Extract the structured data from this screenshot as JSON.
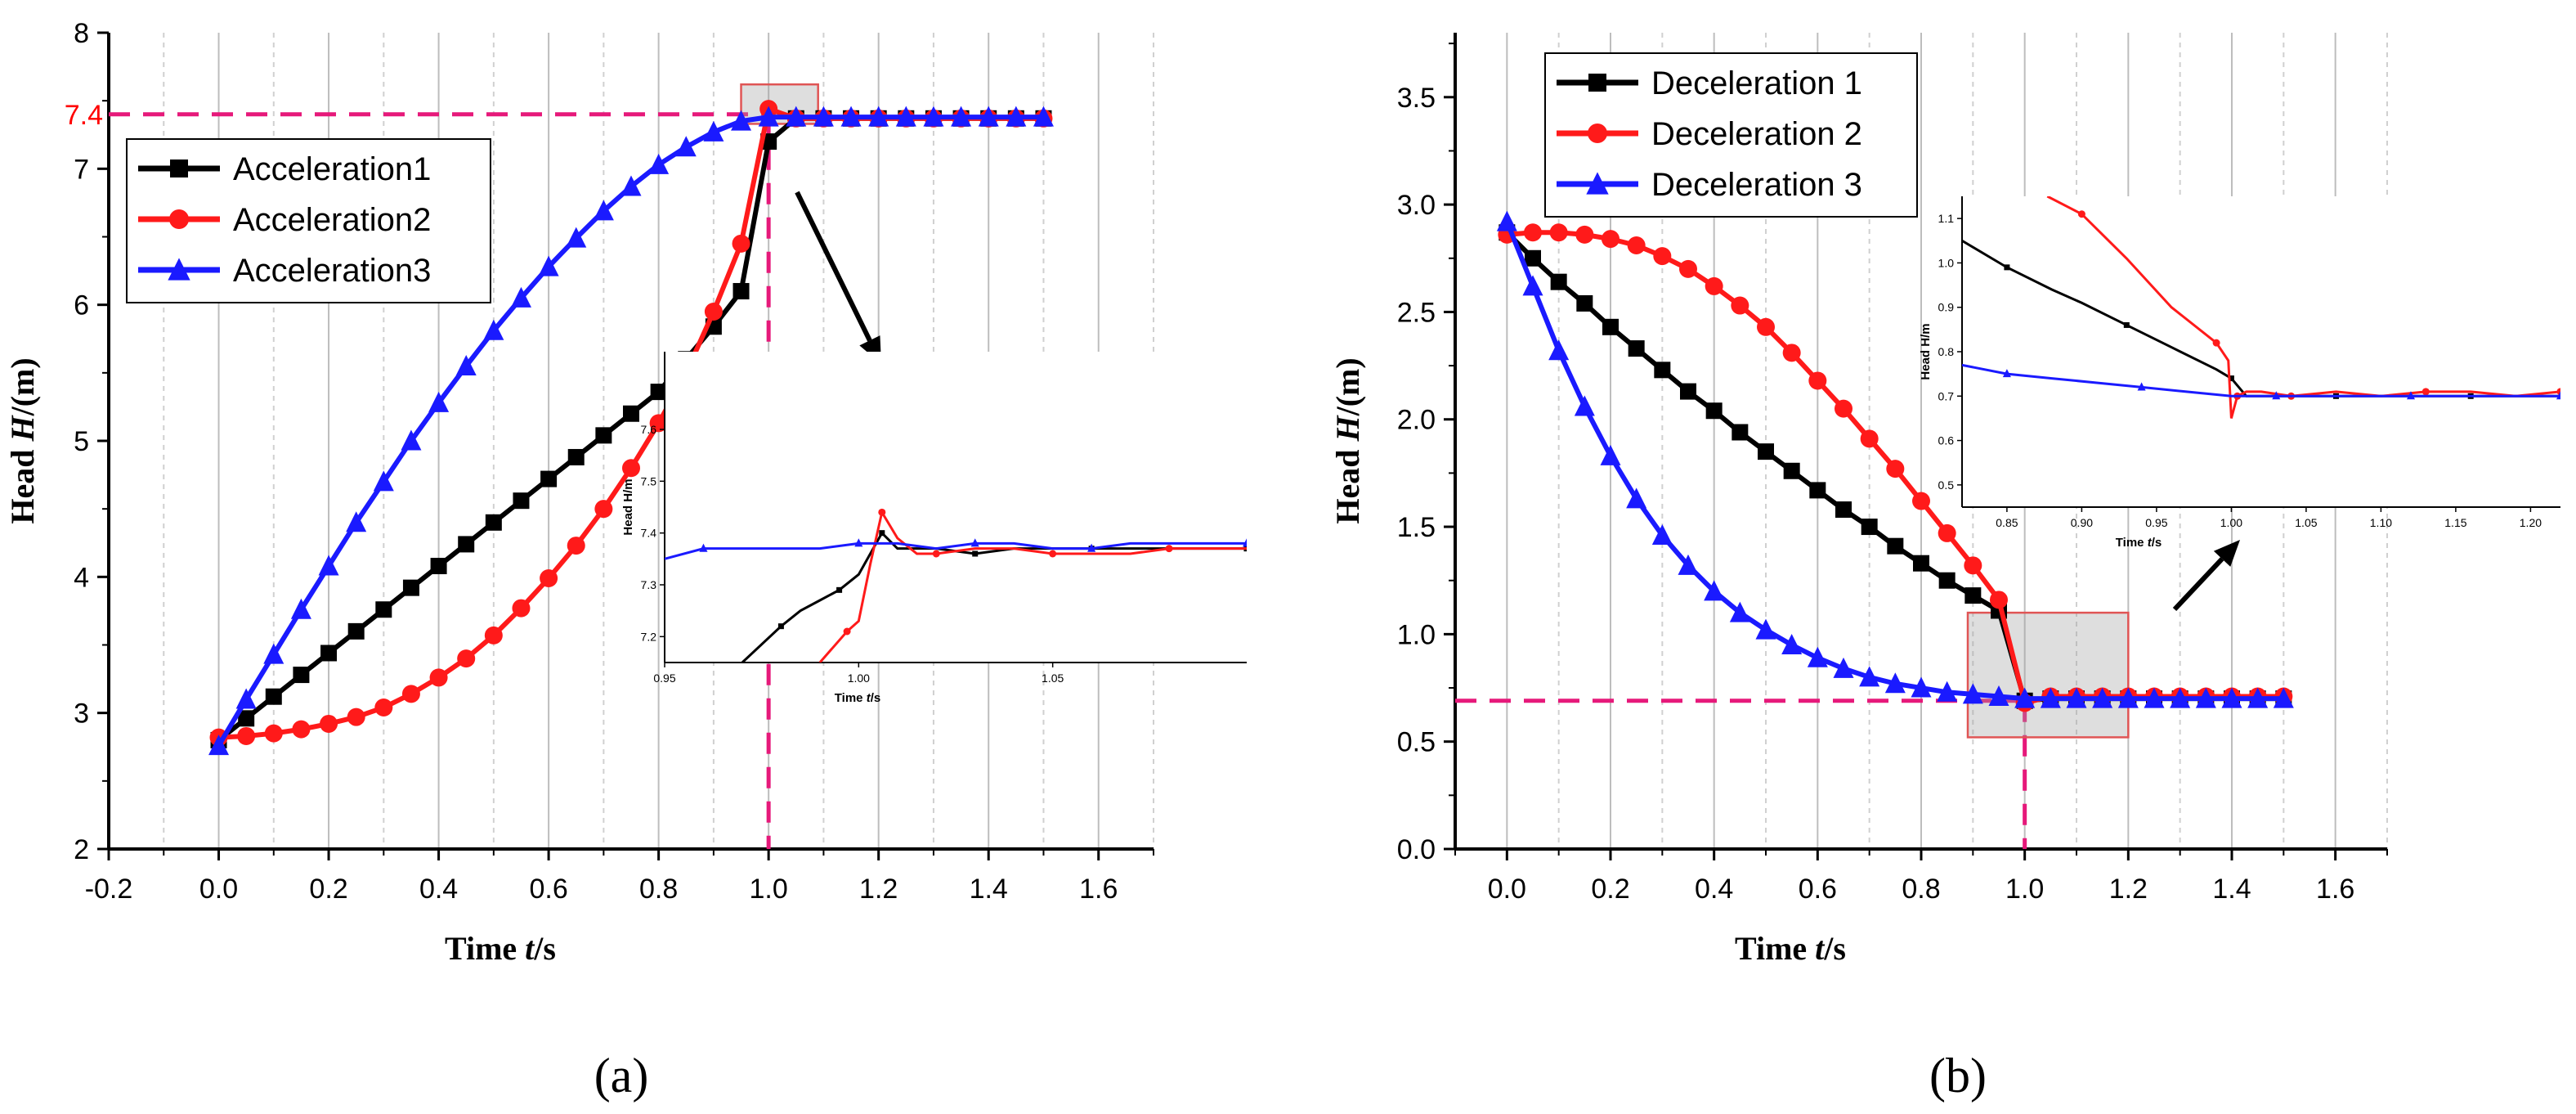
{
  "colors": {
    "series1": "#000000",
    "series2": "#ff1a1a",
    "series3": "#1a1aff",
    "ref_line": "#e6197a",
    "zoom_box": "#e05555"
  },
  "panel_labels": [
    "(a)",
    "(b)"
  ],
  "chart_data": [
    {
      "type": "line",
      "panel": "(a)",
      "xlabel_prefix": "Time ",
      "xlabel_var": "t",
      "xlabel_suffix": "/s",
      "ylabel_prefix": "Head ",
      "ylabel_var": "H",
      "ylabel_suffix": "/(m)",
      "xlim": [
        -0.2,
        1.7
      ],
      "ylim": [
        2,
        8
      ],
      "xticks": [
        -0.2,
        0.0,
        0.2,
        0.4,
        0.6,
        0.8,
        1.0,
        1.2,
        1.4,
        1.6
      ],
      "xtick_labels": [
        "-0.2",
        "0.0",
        "0.2",
        "0.4",
        "0.6",
        "0.8",
        "1.0",
        "1.2",
        "1.4",
        "1.6"
      ],
      "yticks": [
        2,
        3,
        4,
        5,
        6,
        7,
        8
      ],
      "ytick_labels": [
        "2",
        "3",
        "4",
        "5",
        "6",
        "7",
        "8"
      ],
      "grid": "vertical",
      "legend_position": "top-left",
      "reference": {
        "x": 1.0,
        "y": 7.4,
        "y_label": "7.4"
      },
      "zoom_box": {
        "x": [
          0.95,
          1.09
        ],
        "y": [
          7.33,
          7.62
        ]
      },
      "series": [
        {
          "name": "Acceleration1",
          "marker": "square",
          "x": [
            0.0,
            0.05,
            0.1,
            0.15,
            0.2,
            0.25,
            0.3,
            0.35,
            0.4,
            0.45,
            0.5,
            0.55,
            0.6,
            0.65,
            0.7,
            0.75,
            0.8,
            0.85,
            0.9,
            0.95,
            1.0,
            1.05,
            1.1,
            1.15,
            1.2,
            1.25,
            1.3,
            1.35,
            1.4,
            1.45,
            1.5
          ],
          "y": [
            2.8,
            2.96,
            3.12,
            3.28,
            3.44,
            3.6,
            3.76,
            3.92,
            4.08,
            4.24,
            4.4,
            4.56,
            4.72,
            4.88,
            5.04,
            5.2,
            5.36,
            5.6,
            5.84,
            6.1,
            7.2,
            7.37,
            7.37,
            7.37,
            7.37,
            7.37,
            7.37,
            7.37,
            7.37,
            7.37,
            7.37
          ]
        },
        {
          "name": "Acceleration2",
          "marker": "circle",
          "x": [
            0.0,
            0.05,
            0.1,
            0.15,
            0.2,
            0.25,
            0.3,
            0.35,
            0.4,
            0.45,
            0.5,
            0.55,
            0.6,
            0.65,
            0.7,
            0.75,
            0.8,
            0.85,
            0.9,
            0.95,
            1.0,
            1.05,
            1.1,
            1.15,
            1.2,
            1.25,
            1.3,
            1.35,
            1.4,
            1.45,
            1.5
          ],
          "y": [
            2.82,
            2.83,
            2.85,
            2.88,
            2.92,
            2.97,
            3.04,
            3.14,
            3.26,
            3.4,
            3.57,
            3.77,
            3.99,
            4.23,
            4.5,
            4.8,
            5.13,
            5.5,
            5.95,
            6.45,
            7.44,
            7.37,
            7.37,
            7.37,
            7.37,
            7.37,
            7.37,
            7.37,
            7.37,
            7.37,
            7.37
          ]
        },
        {
          "name": "Acceleration3",
          "marker": "triangle",
          "x": [
            0.0,
            0.05,
            0.1,
            0.15,
            0.2,
            0.25,
            0.3,
            0.35,
            0.4,
            0.45,
            0.5,
            0.55,
            0.6,
            0.65,
            0.7,
            0.75,
            0.8,
            0.85,
            0.9,
            0.95,
            1.0,
            1.05,
            1.1,
            1.15,
            1.2,
            1.25,
            1.3,
            1.35,
            1.4,
            1.45,
            1.5
          ],
          "y": [
            2.76,
            3.1,
            3.43,
            3.76,
            4.08,
            4.4,
            4.7,
            5.0,
            5.28,
            5.55,
            5.81,
            6.05,
            6.28,
            6.49,
            6.69,
            6.87,
            7.03,
            7.16,
            7.27,
            7.35,
            7.38,
            7.38,
            7.38,
            7.38,
            7.38,
            7.38,
            7.38,
            7.38,
            7.38,
            7.38,
            7.38
          ]
        }
      ],
      "inset": {
        "xlabel_prefix": "Time ",
        "xlabel_var": "t",
        "xlabel_suffix": "/s",
        "ylabel": "Head H/m",
        "xlim": [
          0.95,
          1.1
        ],
        "ylim": [
          7.15,
          7.75
        ],
        "xticks": [
          0.95,
          1.0,
          1.05
        ],
        "xtick_labels": [
          "0.95",
          "1.00",
          "1.05"
        ],
        "yticks": [
          7.2,
          7.3,
          7.4,
          7.5,
          7.6
        ],
        "ytick_labels": [
          "7.2",
          "7.3",
          "7.4",
          "7.5",
          "7.6"
        ],
        "series": [
          {
            "x": [
              0.97,
              0.98,
              0.985,
              0.99,
              0.995,
              1.0,
              1.003,
              1.006,
              1.01,
              1.02,
              1.03,
              1.04,
              1.05,
              1.06,
              1.07,
              1.08,
              1.1
            ],
            "y": [
              7.15,
              7.22,
              7.25,
              7.27,
              7.29,
              7.32,
              7.36,
              7.4,
              7.37,
              7.37,
              7.36,
              7.37,
              7.37,
              7.37,
              7.37,
              7.37,
              7.37
            ]
          },
          {
            "x": [
              0.99,
              0.997,
              1.0,
              1.003,
              1.006,
              1.01,
              1.015,
              1.02,
              1.03,
              1.04,
              1.05,
              1.06,
              1.07,
              1.08,
              1.1
            ],
            "y": [
              7.15,
              7.21,
              7.23,
              7.34,
              7.44,
              7.39,
              7.36,
              7.36,
              7.37,
              7.37,
              7.36,
              7.36,
              7.36,
              7.37,
              7.37
            ]
          },
          {
            "x": [
              0.95,
              0.96,
              0.98,
              0.99,
              1.0,
              1.01,
              1.02,
              1.03,
              1.04,
              1.05,
              1.06,
              1.07,
              1.08,
              1.1
            ],
            "y": [
              7.35,
              7.37,
              7.37,
              7.37,
              7.38,
              7.38,
              7.37,
              7.38,
              7.38,
              7.37,
              7.37,
              7.38,
              7.38,
              7.38
            ]
          }
        ]
      }
    },
    {
      "type": "line",
      "panel": "(b)",
      "xlabel_prefix": "Time ",
      "xlabel_var": "t",
      "xlabel_suffix": "/s",
      "ylabel_prefix": "Head ",
      "ylabel_var": "H",
      "ylabel_suffix": "/(m)",
      "xlim": [
        -0.1,
        1.7
      ],
      "ylim": [
        0.0,
        3.8
      ],
      "xticks": [
        0.0,
        0.2,
        0.4,
        0.6,
        0.8,
        1.0,
        1.2,
        1.4,
        1.6
      ],
      "xtick_labels": [
        "0.0",
        "0.2",
        "0.4",
        "0.6",
        "0.8",
        "1.0",
        "1.2",
        "1.4",
        "1.6"
      ],
      "yticks": [
        0.0,
        0.5,
        1.0,
        1.5,
        2.0,
        2.5,
        3.0,
        3.5
      ],
      "ytick_labels": [
        "0.0",
        "0.5",
        "1.0",
        "1.5",
        "2.0",
        "2.5",
        "3.0",
        "3.5"
      ],
      "grid": "vertical",
      "legend_position": "top-left",
      "reference": {
        "x": 1.0,
        "y": 0.69
      },
      "zoom_box": {
        "x": [
          0.89,
          1.2
        ],
        "y": [
          0.52,
          1.1
        ]
      },
      "series": [
        {
          "name": "Deceleration 1",
          "marker": "square",
          "x": [
            0.0,
            0.05,
            0.1,
            0.15,
            0.2,
            0.25,
            0.3,
            0.35,
            0.4,
            0.45,
            0.5,
            0.55,
            0.6,
            0.65,
            0.7,
            0.75,
            0.8,
            0.85,
            0.9,
            0.95,
            1.0,
            1.05,
            1.1,
            1.15,
            1.2,
            1.25,
            1.3,
            1.35,
            1.4,
            1.45,
            1.5
          ],
          "y": [
            2.87,
            2.75,
            2.64,
            2.54,
            2.43,
            2.33,
            2.23,
            2.13,
            2.04,
            1.94,
            1.85,
            1.76,
            1.67,
            1.58,
            1.5,
            1.41,
            1.33,
            1.25,
            1.18,
            1.11,
            0.69,
            0.7,
            0.7,
            0.7,
            0.7,
            0.7,
            0.7,
            0.7,
            0.7,
            0.7,
            0.7
          ]
        },
        {
          "name": "Deceleration 2",
          "marker": "circle",
          "x": [
            0.0,
            0.05,
            0.1,
            0.15,
            0.2,
            0.25,
            0.3,
            0.35,
            0.4,
            0.45,
            0.5,
            0.55,
            0.6,
            0.65,
            0.7,
            0.75,
            0.8,
            0.85,
            0.9,
            0.95,
            1.0,
            1.05,
            1.1,
            1.15,
            1.2,
            1.25,
            1.3,
            1.35,
            1.4,
            1.45,
            1.5
          ],
          "y": [
            2.86,
            2.87,
            2.87,
            2.86,
            2.84,
            2.81,
            2.76,
            2.7,
            2.62,
            2.53,
            2.43,
            2.31,
            2.18,
            2.05,
            1.91,
            1.77,
            1.62,
            1.47,
            1.32,
            1.16,
            0.68,
            0.71,
            0.71,
            0.71,
            0.71,
            0.71,
            0.71,
            0.71,
            0.71,
            0.71,
            0.71
          ]
        },
        {
          "name": "Deceleration 3",
          "marker": "triangle",
          "x": [
            0.0,
            0.05,
            0.1,
            0.15,
            0.2,
            0.25,
            0.3,
            0.35,
            0.4,
            0.45,
            0.5,
            0.55,
            0.6,
            0.65,
            0.7,
            0.75,
            0.8,
            0.85,
            0.9,
            0.95,
            1.0,
            1.05,
            1.1,
            1.15,
            1.2,
            1.25,
            1.3,
            1.35,
            1.4,
            1.45,
            1.5
          ],
          "y": [
            2.92,
            2.62,
            2.32,
            2.06,
            1.83,
            1.63,
            1.46,
            1.32,
            1.2,
            1.1,
            1.02,
            0.95,
            0.89,
            0.84,
            0.8,
            0.77,
            0.75,
            0.73,
            0.72,
            0.71,
            0.7,
            0.7,
            0.7,
            0.7,
            0.7,
            0.7,
            0.7,
            0.7,
            0.7,
            0.7,
            0.7
          ]
        }
      ],
      "inset": {
        "xlabel_prefix": "Time ",
        "xlabel_var": "t",
        "xlabel_suffix": "/s",
        "ylabel": "Head H/m",
        "xlim": [
          0.82,
          1.22
        ],
        "ylim": [
          0.45,
          1.15
        ],
        "xticks": [
          0.85,
          0.9,
          0.95,
          1.0,
          1.05,
          1.1,
          1.15,
          1.2
        ],
        "xtick_labels": [
          "0.85",
          "0.90",
          "0.95",
          "1.00",
          "1.05",
          "1.10",
          "1.15",
          "1.20"
        ],
        "yticks": [
          0.5,
          0.6,
          0.7,
          0.8,
          0.9,
          1.0,
          1.1
        ],
        "ytick_labels": [
          "0.5",
          "0.6",
          "0.7",
          "0.8",
          "0.9",
          "1.0",
          "1.1"
        ],
        "series": [
          {
            "x": [
              0.82,
              0.85,
              0.88,
              0.9,
              0.93,
              0.96,
              0.99,
              1.0,
              1.01,
              1.04,
              1.07,
              1.1,
              1.13,
              1.16,
              1.19,
              1.22
            ],
            "y": [
              1.05,
              0.99,
              0.94,
              0.91,
              0.86,
              0.81,
              0.76,
              0.74,
              0.7,
              0.7,
              0.7,
              0.7,
              0.7,
              0.7,
              0.7,
              0.7
            ]
          },
          {
            "x": [
              0.877,
              0.9,
              0.93,
              0.96,
              0.99,
              0.998,
              1.0,
              1.004,
              1.01,
              1.02,
              1.04,
              1.07,
              1.1,
              1.13,
              1.16,
              1.19,
              1.22
            ],
            "y": [
              1.15,
              1.11,
              1.01,
              0.9,
              0.82,
              0.78,
              0.65,
              0.7,
              0.71,
              0.71,
              0.7,
              0.71,
              0.7,
              0.71,
              0.71,
              0.7,
              0.71
            ]
          },
          {
            "x": [
              0.82,
              0.85,
              0.88,
              0.91,
              0.94,
              0.97,
              1.0,
              1.03,
              1.06,
              1.09,
              1.12,
              1.15,
              1.18,
              1.22
            ],
            "y": [
              0.77,
              0.75,
              0.74,
              0.73,
              0.72,
              0.71,
              0.7,
              0.7,
              0.7,
              0.7,
              0.7,
              0.7,
              0.7,
              0.7
            ]
          }
        ]
      }
    }
  ]
}
